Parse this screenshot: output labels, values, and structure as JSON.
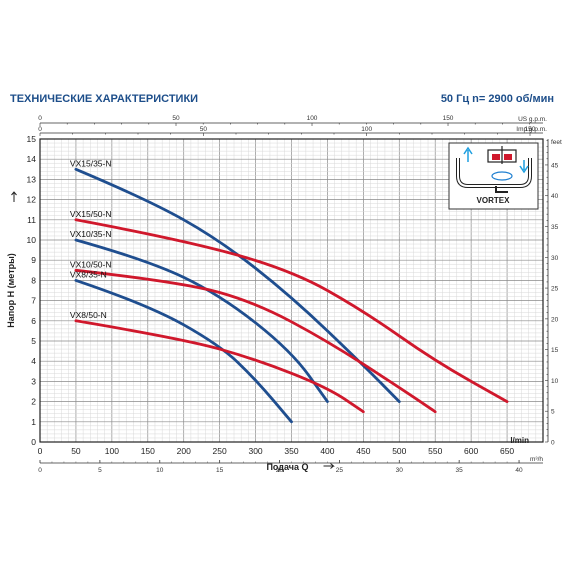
{
  "header": {
    "title": "ТЕХНИЧЕСКИЕ ХАРАКТЕРИСТИКИ",
    "spec": "50 Гц   n= 2900 об/мин"
  },
  "inset": {
    "label": "VORTEX",
    "pump_icon": "vortex-pump-icon"
  },
  "colors": {
    "series_35N": "#1f4e8f",
    "series_50N": "#d0182c",
    "header": "#1d4e8a"
  },
  "chart_data": {
    "type": "line",
    "xlabel": "Подача Q",
    "ylabel": "Напор H (метры)",
    "x_unit": "l/min",
    "y_unit": "m",
    "xlim": [
      0,
      700
    ],
    "ylim": [
      0,
      15
    ],
    "x_ticks": [
      0,
      50,
      100,
      150,
      200,
      250,
      300,
      350,
      400,
      450,
      500,
      550,
      600,
      650
    ],
    "y_ticks": [
      0,
      1,
      2,
      3,
      4,
      5,
      6,
      7,
      8,
      9,
      10,
      11,
      12,
      13,
      14,
      15
    ],
    "grid": true,
    "secondary_axes": {
      "m3h": {
        "unit": "m³/h",
        "ticks": [
          0,
          5,
          10,
          15,
          20,
          25,
          30,
          35,
          40
        ]
      },
      "us_gpm": {
        "unit": "US g.p.m.",
        "ticks": [
          0,
          50,
          100,
          150
        ]
      },
      "imp_gpm": {
        "unit": "Imp g.p.m.",
        "ticks": [
          0,
          50,
          100,
          150
        ]
      },
      "feet": {
        "unit": "feet",
        "ticks": [
          0,
          5,
          10,
          15,
          20,
          25,
          30,
          35,
          40,
          45
        ]
      }
    },
    "series": [
      {
        "name": "VX15/35-N",
        "color": "#1f4e8f",
        "points": [
          [
            50,
            13.5
          ],
          [
            150,
            12.0
          ],
          [
            250,
            10.0
          ],
          [
            350,
            7.2
          ],
          [
            450,
            3.8
          ],
          [
            500,
            2.0
          ]
        ]
      },
      {
        "name": "VX15/50-N",
        "color": "#d0182c",
        "points": [
          [
            50,
            11.0
          ],
          [
            200,
            10.0
          ],
          [
            350,
            8.5
          ],
          [
            450,
            6.5
          ],
          [
            550,
            4.0
          ],
          [
            650,
            2.0
          ]
        ]
      },
      {
        "name": "VX10/35-N",
        "color": "#1f4e8f",
        "points": [
          [
            50,
            10.0
          ],
          [
            150,
            9.0
          ],
          [
            250,
            7.3
          ],
          [
            350,
            4.5
          ],
          [
            400,
            2.0
          ]
        ]
      },
      {
        "name": "VX10/50-N",
        "color": "#d0182c",
        "points": [
          [
            50,
            8.5
          ],
          [
            200,
            7.9
          ],
          [
            300,
            6.9
          ],
          [
            400,
            5.0
          ],
          [
            500,
            2.7
          ],
          [
            550,
            1.5
          ]
        ]
      },
      {
        "name": "VX8/35-N",
        "color": "#1f4e8f",
        "points": [
          [
            50,
            8.0
          ],
          [
            150,
            6.8
          ],
          [
            250,
            4.8
          ],
          [
            300,
            3.1
          ],
          [
            350,
            1.0
          ]
        ]
      },
      {
        "name": "VX8/50-N",
        "color": "#d0182c",
        "points": [
          [
            50,
            6.0
          ],
          [
            200,
            5.1
          ],
          [
            300,
            4.1
          ],
          [
            400,
            2.7
          ],
          [
            450,
            1.5
          ]
        ]
      }
    ]
  }
}
